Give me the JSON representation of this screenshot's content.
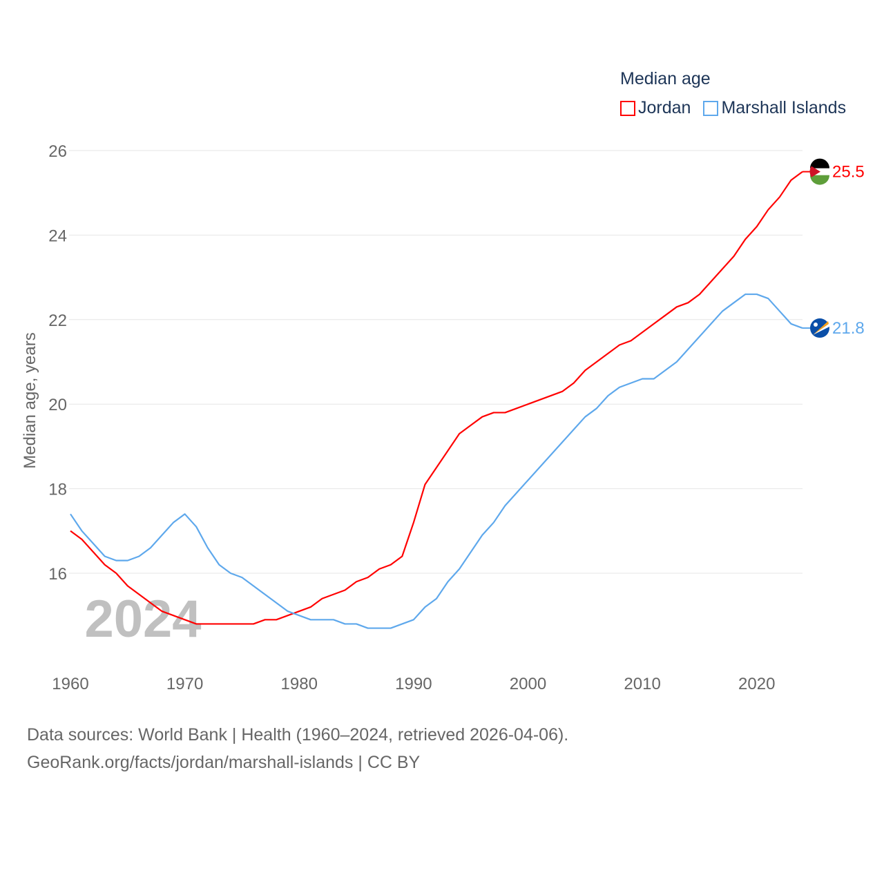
{
  "chart_data": {
    "type": "line",
    "title": "Median age",
    "ylabel": "Median age, years",
    "xlabel": "",
    "xlim": [
      1960,
      2024
    ],
    "ylim": [
      14.0,
      26.0
    ],
    "yticks": [
      16,
      18,
      20,
      22,
      24,
      26
    ],
    "xticks": [
      1960,
      1970,
      1980,
      1990,
      2000,
      2010,
      2020
    ],
    "grid": true,
    "legend_placement": "top-right",
    "watermark_year": "2024",
    "x": [
      1960,
      1961,
      1962,
      1963,
      1964,
      1965,
      1966,
      1967,
      1968,
      1969,
      1970,
      1971,
      1972,
      1973,
      1974,
      1975,
      1976,
      1977,
      1978,
      1979,
      1980,
      1981,
      1982,
      1983,
      1984,
      1985,
      1986,
      1987,
      1988,
      1989,
      1990,
      1991,
      1992,
      1993,
      1994,
      1995,
      1996,
      1997,
      1998,
      1999,
      2000,
      2001,
      2002,
      2003,
      2004,
      2005,
      2006,
      2007,
      2008,
      2009,
      2010,
      2011,
      2012,
      2013,
      2014,
      2015,
      2016,
      2017,
      2018,
      2019,
      2020,
      2021,
      2022,
      2023,
      2024
    ],
    "series": [
      {
        "name": "Jordan",
        "color": "#ff0000",
        "end_label": "25.5",
        "values": [
          17.0,
          16.8,
          16.5,
          16.2,
          16.0,
          15.7,
          15.5,
          15.3,
          15.1,
          15.0,
          14.9,
          14.8,
          14.8,
          14.8,
          14.8,
          14.8,
          14.8,
          14.9,
          14.9,
          15.0,
          15.1,
          15.2,
          15.4,
          15.5,
          15.6,
          15.8,
          15.9,
          16.1,
          16.2,
          16.4,
          17.2,
          18.1,
          18.5,
          18.9,
          19.3,
          19.5,
          19.7,
          19.8,
          19.8,
          19.9,
          20.0,
          20.1,
          20.2,
          20.3,
          20.5,
          20.8,
          21.0,
          21.2,
          21.4,
          21.5,
          21.7,
          21.9,
          22.1,
          22.3,
          22.4,
          22.6,
          22.9,
          23.2,
          23.5,
          23.9,
          24.2,
          24.6,
          24.9,
          25.3,
          25.5
        ]
      },
      {
        "name": "Marshall Islands",
        "color": "#5ea8ec",
        "end_label": "21.8",
        "values": [
          17.4,
          17.0,
          16.7,
          16.4,
          16.3,
          16.3,
          16.4,
          16.6,
          16.9,
          17.2,
          17.4,
          17.1,
          16.6,
          16.2,
          16.0,
          15.9,
          15.7,
          15.5,
          15.3,
          15.1,
          15.0,
          14.9,
          14.9,
          14.9,
          14.8,
          14.8,
          14.7,
          14.7,
          14.7,
          14.8,
          14.9,
          15.2,
          15.4,
          15.8,
          16.1,
          16.5,
          16.9,
          17.2,
          17.6,
          17.9,
          18.2,
          18.5,
          18.8,
          19.1,
          19.4,
          19.7,
          19.9,
          20.2,
          20.4,
          20.5,
          20.6,
          20.6,
          20.8,
          21.0,
          21.3,
          21.6,
          21.9,
          22.2,
          22.4,
          22.6,
          22.6,
          22.5,
          22.2,
          21.9,
          21.8
        ]
      }
    ]
  },
  "footer": {
    "line1": "Data sources: World Bank | Health (1960–2024, retrieved 2026-04-06).",
    "line2": "GeoRank.org/facts/jordan/marshall-islands | CC BY"
  }
}
